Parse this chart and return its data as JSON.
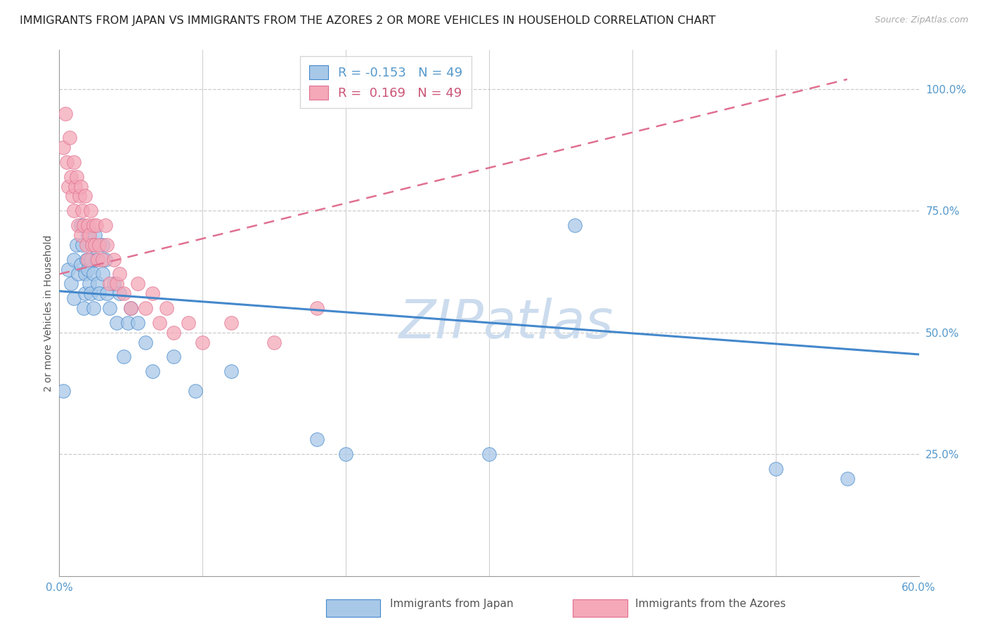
{
  "title": "IMMIGRANTS FROM JAPAN VS IMMIGRANTS FROM THE AZORES 2 OR MORE VEHICLES IN HOUSEHOLD CORRELATION CHART",
  "source": "Source: ZipAtlas.com",
  "ylabel": "2 or more Vehicles in Household",
  "xlim": [
    0.0,
    0.6
  ],
  "ylim": [
    0.0,
    1.08
  ],
  "xtick_positions": [
    0.0,
    0.1,
    0.2,
    0.3,
    0.4,
    0.5,
    0.6
  ],
  "xticklabels": [
    "0.0%",
    "",
    "",
    "",
    "",
    "",
    "60.0%"
  ],
  "yticks_right": [
    0.25,
    0.5,
    0.75,
    1.0
  ],
  "ytick_right_labels": [
    "25.0%",
    "50.0%",
    "75.0%",
    "100.0%"
  ],
  "legend_R_japan": "-0.153",
  "legend_N_japan": "49",
  "legend_R_azores": "0.169",
  "legend_N_azores": "49",
  "color_japan": "#a8c8e8",
  "color_azores": "#f4a8b8",
  "color_trendline_japan": "#4488cc",
  "color_trendline_azores": "#e07090",
  "watermark": "ZIPatlas",
  "japan_x": [
    0.003,
    0.006,
    0.008,
    0.01,
    0.01,
    0.012,
    0.013,
    0.015,
    0.015,
    0.016,
    0.017,
    0.018,
    0.018,
    0.019,
    0.02,
    0.02,
    0.021,
    0.022,
    0.022,
    0.023,
    0.024,
    0.024,
    0.025,
    0.026,
    0.027,
    0.028,
    0.03,
    0.03,
    0.032,
    0.033,
    0.035,
    0.038,
    0.04,
    0.042,
    0.045,
    0.048,
    0.05,
    0.055,
    0.06,
    0.065,
    0.08,
    0.095,
    0.12,
    0.18,
    0.2,
    0.3,
    0.36,
    0.5,
    0.55
  ],
  "japan_y": [
    0.38,
    0.63,
    0.6,
    0.65,
    0.57,
    0.68,
    0.62,
    0.72,
    0.64,
    0.68,
    0.55,
    0.62,
    0.58,
    0.65,
    0.7,
    0.63,
    0.6,
    0.65,
    0.58,
    0.68,
    0.62,
    0.55,
    0.7,
    0.65,
    0.6,
    0.58,
    0.68,
    0.62,
    0.65,
    0.58,
    0.55,
    0.6,
    0.52,
    0.58,
    0.45,
    0.52,
    0.55,
    0.52,
    0.48,
    0.42,
    0.45,
    0.38,
    0.42,
    0.28,
    0.25,
    0.25,
    0.72,
    0.22,
    0.2
  ],
  "azores_x": [
    0.003,
    0.004,
    0.005,
    0.006,
    0.007,
    0.008,
    0.009,
    0.01,
    0.01,
    0.011,
    0.012,
    0.013,
    0.014,
    0.015,
    0.015,
    0.016,
    0.017,
    0.018,
    0.019,
    0.02,
    0.02,
    0.021,
    0.022,
    0.023,
    0.024,
    0.025,
    0.026,
    0.027,
    0.028,
    0.03,
    0.032,
    0.033,
    0.035,
    0.038,
    0.04,
    0.042,
    0.045,
    0.05,
    0.055,
    0.06,
    0.065,
    0.07,
    0.075,
    0.08,
    0.09,
    0.1,
    0.12,
    0.15,
    0.18
  ],
  "azores_y": [
    0.88,
    0.95,
    0.85,
    0.8,
    0.9,
    0.82,
    0.78,
    0.85,
    0.75,
    0.8,
    0.82,
    0.72,
    0.78,
    0.8,
    0.7,
    0.75,
    0.72,
    0.78,
    0.68,
    0.72,
    0.65,
    0.7,
    0.75,
    0.68,
    0.72,
    0.68,
    0.72,
    0.65,
    0.68,
    0.65,
    0.72,
    0.68,
    0.6,
    0.65,
    0.6,
    0.62,
    0.58,
    0.55,
    0.6,
    0.55,
    0.58,
    0.52,
    0.55,
    0.5,
    0.52,
    0.48,
    0.52,
    0.48,
    0.55
  ],
  "grid_color": "#cccccc",
  "background_color": "#ffffff",
  "title_fontsize": 11.5,
  "axis_label_fontsize": 10,
  "tick_fontsize": 11,
  "watermark_color": "#ccdcee",
  "watermark_fontsize": 55,
  "japan_trendline_x": [
    0.0,
    0.6
  ],
  "japan_trendline_y": [
    0.585,
    0.455
  ],
  "azores_trendline_x": [
    0.0,
    0.55
  ],
  "azores_trendline_y": [
    0.62,
    1.02
  ]
}
